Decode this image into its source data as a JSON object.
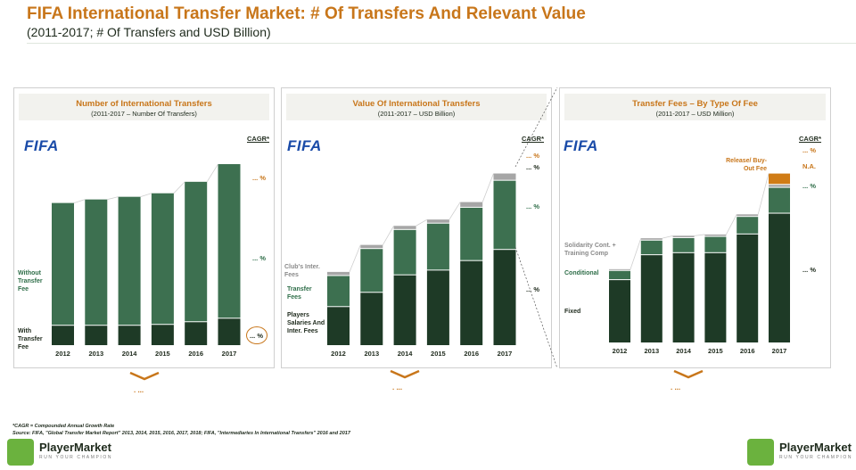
{
  "header": {
    "title": "FIFA International Transfer Market: # Of Transfers And Relevant Value",
    "subtitle": "(2011-2017; # Of Transfers and USD Billion)"
  },
  "colors": {
    "accent": "#c8761a",
    "dark_green": "#1e3a26",
    "mid_green": "#3d7050",
    "light_grey": "#a6a6a6",
    "orange_fill": "#d07c16",
    "fifa_blue": "#1a4ba8"
  },
  "panels": [
    {
      "title": "Number of International Transfers",
      "subtitle": "(2011-2017 – Number Of Transfers)",
      "logo": "FIFA",
      "cagr_label": "CAGR*",
      "cagr_values": [
        "... %",
        "... %",
        "... %"
      ],
      "segment_labels": [
        "Without Transfer Fee",
        "With Transfer Fee"
      ],
      "chevron_text": ". ..."
    },
    {
      "title": "Value Of International Transfers",
      "subtitle": "(2011-2017 – USD Billion)",
      "logo": "FIFA",
      "cagr_label": "CAGR*",
      "cagr_values": [
        "... %",
        "... %",
        "... %",
        "... %"
      ],
      "segment_labels": [
        "Club's Inter. Fees",
        "Transfer Fees",
        "Players Salaries And Inter. Fees"
      ],
      "chevron_text": ". ..."
    },
    {
      "title": "Transfer Fees – By Type Of Fee",
      "subtitle": "(2011-2017 – USD Million)",
      "logo": "FIFA",
      "cagr_label": "CAGR*",
      "cagr_values": [
        "... %",
        "N.A.",
        "... %",
        "... %"
      ],
      "segment_labels": [
        "Release/ Buy-Out Fee",
        "Solidarity Cont. + Training Comp",
        "Conditional",
        "Fixed"
      ],
      "chevron_text": ". ..."
    }
  ],
  "footnotes": {
    "cagr_note": "*CAGR = Compounded Annual Growth Rate",
    "source": "Source: FIFA, \"Global Transfer Market Report\" 2013, 2014, 2015, 2016, 2017, 2018; FIFA, \"Intermediaries In International Transfers\" 2016 and 2017"
  },
  "brand": {
    "name": "PlayerMarket",
    "tagline": "RUN YOUR CHAMPION"
  },
  "chart_data": [
    {
      "type": "bar",
      "stacked": true,
      "title": "Number of International Transfers",
      "categories": [
        "2012",
        "2013",
        "2014",
        "2015",
        "2016",
        "2017"
      ],
      "series": [
        {
          "name": "With Transfer Fee",
          "values": [
            11,
            11,
            11,
            11.5,
            13,
            15
          ]
        },
        {
          "name": "Without Transfer Fee",
          "values": [
            69,
            71,
            72.5,
            74,
            79,
            87
          ]
        }
      ],
      "ylim": [
        0,
        110
      ],
      "grid": false,
      "legend": "left"
    },
    {
      "type": "bar",
      "stacked": true,
      "title": "Value Of International Transfers",
      "categories": [
        "2012",
        "2013",
        "2014",
        "2015",
        "2016",
        "2017"
      ],
      "series": [
        {
          "name": "Players Salaries And Inter. Fees",
          "values": [
            2.4,
            3.3,
            4.4,
            4.7,
            5.3,
            6.0
          ]
        },
        {
          "name": "Transfer Fees",
          "values": [
            1.9,
            2.7,
            2.8,
            2.9,
            3.3,
            4.3
          ]
        },
        {
          "name": "Club's Inter. Fees",
          "values": [
            0.2,
            0.2,
            0.2,
            0.2,
            0.3,
            0.4
          ]
        }
      ],
      "ylim": [
        0,
        12
      ],
      "grid": false,
      "legend": "left"
    },
    {
      "type": "bar",
      "stacked": true,
      "title": "Transfer Fees – By Type Of Fee",
      "categories": [
        "2012",
        "2013",
        "2014",
        "2015",
        "2016",
        "2017"
      ],
      "series": [
        {
          "name": "Fixed",
          "values": [
            1500,
            2100,
            2150,
            2150,
            2600,
            3100
          ]
        },
        {
          "name": "Conditional",
          "values": [
            200,
            330,
            340,
            370,
            400,
            600
          ]
        },
        {
          "name": "Solidarity Cont. + Training Comp",
          "values": [
            20,
            35,
            35,
            35,
            40,
            50
          ]
        },
        {
          "name": "Release/ Buy-Out Fee",
          "values": [
            0,
            0,
            0,
            0,
            0,
            250
          ]
        }
      ],
      "ylim": [
        0,
        4500
      ],
      "grid": false,
      "legend": "left"
    }
  ]
}
